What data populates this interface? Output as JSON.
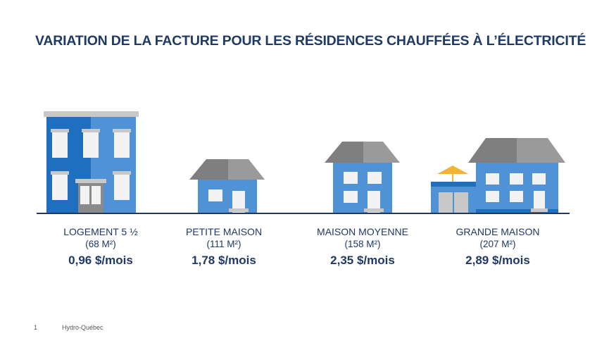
{
  "title": "VARIATION DE LA FACTURE POUR LES RÉSIDENCES CHAUFFÉES À L’ÉLECTRICITÉ",
  "colors": {
    "wall_dark": "#1f6fc0",
    "wall_light": "#4f92d6",
    "roof_dark": "#7f7f7f",
    "roof_light": "#9a9a9a",
    "window": "#f2f2f2",
    "ground": "#1f3864",
    "umbrella": "#f5b335"
  },
  "houses": [
    {
      "name": "LOGEMENT 5 ½",
      "area": "(68 M²)",
      "price": "0,96 $/mois"
    },
    {
      "name": "PETITE MAISON",
      "area": "(111 M²)",
      "price": "1,78 $/mois"
    },
    {
      "name": "MAISON MOYENNE",
      "area": "(158 M²)",
      "price": "2,35 $/mois"
    },
    {
      "name": "GRANDE MAISON",
      "area": "(207 M²)",
      "price": "2,89 $/mois"
    }
  ],
  "footer": {
    "slide_number": "1",
    "brand": "Hydro-Québec"
  }
}
